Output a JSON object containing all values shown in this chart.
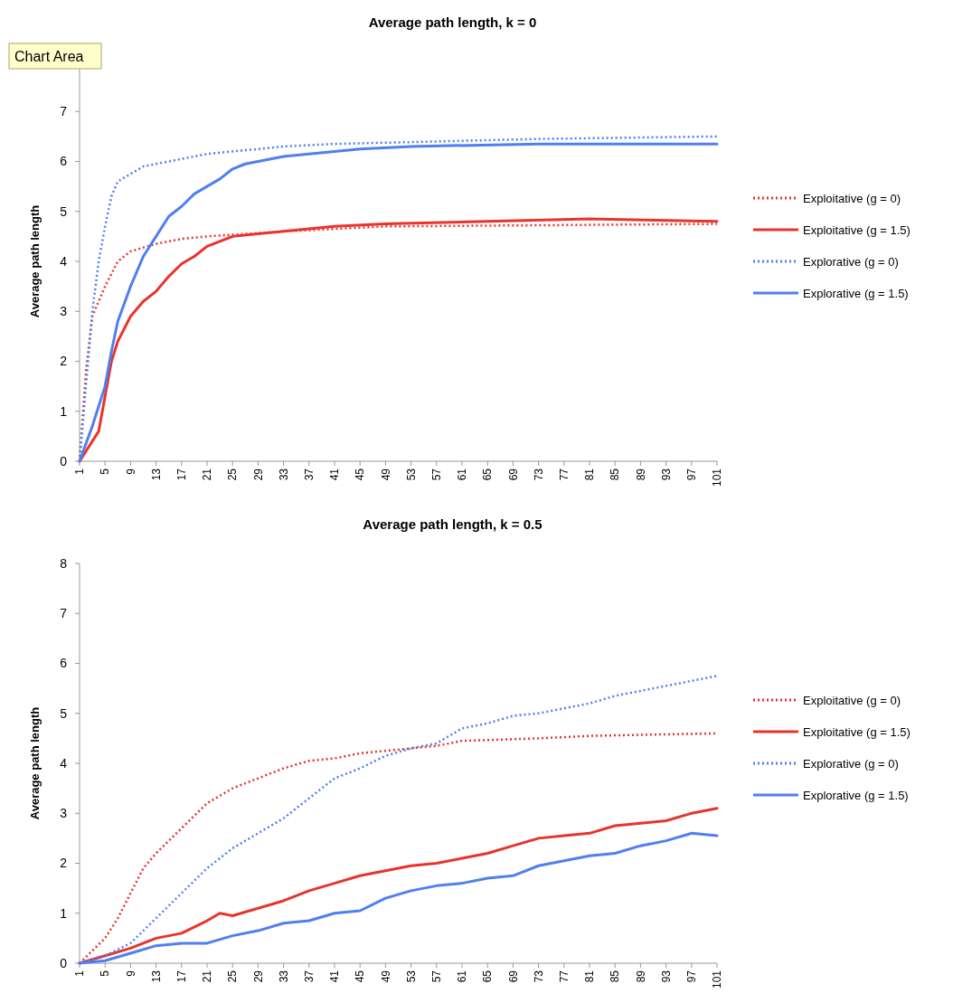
{
  "chart_data": [
    {
      "type": "line",
      "title": "Average path length, k = 0",
      "ylabel": "Average path length",
      "annotations": [
        "Chart Area"
      ],
      "xlim": [
        1,
        101
      ],
      "xticks": [
        1,
        5,
        9,
        13,
        17,
        21,
        25,
        29,
        33,
        37,
        41,
        45,
        49,
        53,
        57,
        61,
        65,
        69,
        73,
        77,
        81,
        85,
        89,
        93,
        97,
        101
      ],
      "ylim": [
        0,
        8
      ],
      "yticks": [
        0,
        1,
        2,
        3,
        4,
        5,
        6,
        7
      ],
      "grid": false,
      "legend": "right",
      "marker": "none",
      "series": [
        {
          "name": "Exploitative (g = 0)",
          "color": "#e8342c",
          "line_style": "dotted",
          "x": [
            1,
            2,
            3,
            5,
            7,
            9,
            13,
            17,
            21,
            33,
            49,
            101
          ],
          "values": [
            0,
            1.8,
            2.9,
            3.5,
            4.0,
            4.2,
            4.35,
            4.45,
            4.5,
            4.6,
            4.7,
            4.75
          ]
        },
        {
          "name": "Exploitative (g = 1.5)",
          "color": "#e8342c",
          "line_style": "solid",
          "x": [
            1,
            3,
            4,
            5,
            6,
            7,
            9,
            11,
            13,
            15,
            17,
            19,
            21,
            25,
            29,
            33,
            37,
            41,
            49,
            65,
            81,
            101
          ],
          "values": [
            0,
            0.4,
            0.6,
            1.3,
            2.0,
            2.4,
            2.9,
            3.2,
            3.4,
            3.7,
            3.95,
            4.1,
            4.3,
            4.5,
            4.55,
            4.6,
            4.65,
            4.7,
            4.75,
            4.8,
            4.85,
            4.8
          ]
        },
        {
          "name": "Explorative (g = 0)",
          "color": "#4f7ff0",
          "line_style": "dotted",
          "x": [
            1,
            2,
            3,
            4,
            5,
            6,
            7,
            9,
            11,
            13,
            17,
            21,
            25,
            33,
            41,
            57,
            73,
            101
          ],
          "values": [
            0,
            1.5,
            3.0,
            4.0,
            4.7,
            5.3,
            5.6,
            5.75,
            5.9,
            5.95,
            6.05,
            6.15,
            6.2,
            6.3,
            6.35,
            6.4,
            6.45,
            6.5
          ]
        },
        {
          "name": "Explorative (g = 1.5)",
          "color": "#4f7ff0",
          "line_style": "solid",
          "x": [
            1,
            3,
            5,
            6,
            7,
            9,
            11,
            13,
            15,
            17,
            19,
            21,
            23,
            25,
            27,
            29,
            33,
            37,
            45,
            53,
            73,
            101
          ],
          "values": [
            0,
            0.7,
            1.5,
            2.2,
            2.8,
            3.5,
            4.1,
            4.5,
            4.9,
            5.1,
            5.35,
            5.5,
            5.65,
            5.85,
            5.95,
            6.0,
            6.1,
            6.15,
            6.25,
            6.3,
            6.35,
            6.35
          ]
        }
      ]
    },
    {
      "type": "line",
      "title": "Average path length, k = 0.5",
      "ylabel": "Average path length",
      "xlim": [
        1,
        101
      ],
      "xticks": [
        1,
        5,
        9,
        13,
        17,
        21,
        25,
        29,
        33,
        37,
        41,
        45,
        49,
        53,
        57,
        61,
        65,
        69,
        73,
        77,
        81,
        85,
        89,
        93,
        97,
        101
      ],
      "ylim": [
        0,
        8
      ],
      "yticks": [
        0,
        1,
        2,
        3,
        4,
        5,
        6,
        7,
        8
      ],
      "grid": false,
      "legend": "right",
      "marker": "none",
      "series": [
        {
          "name": "Exploitative (g = 0)",
          "color": "#e8342c",
          "line_style": "dotted",
          "x": [
            1,
            5,
            7,
            9,
            11,
            13,
            17,
            21,
            25,
            29,
            33,
            37,
            41,
            45,
            49,
            57,
            61,
            73,
            81,
            101
          ],
          "values": [
            0,
            0.5,
            0.9,
            1.4,
            1.9,
            2.2,
            2.7,
            3.2,
            3.5,
            3.7,
            3.9,
            4.05,
            4.1,
            4.2,
            4.25,
            4.35,
            4.45,
            4.5,
            4.55,
            4.6
          ]
        },
        {
          "name": "Exploitative (g = 1.5)",
          "color": "#e8342c",
          "line_style": "solid",
          "x": [
            1,
            5,
            9,
            13,
            17,
            21,
            23,
            25,
            29,
            33,
            37,
            41,
            45,
            49,
            53,
            57,
            61,
            65,
            69,
            73,
            77,
            81,
            85,
            89,
            93,
            97,
            101
          ],
          "values": [
            0,
            0.15,
            0.3,
            0.5,
            0.6,
            0.85,
            1.0,
            0.95,
            1.1,
            1.25,
            1.45,
            1.6,
            1.75,
            1.85,
            1.95,
            2.0,
            2.1,
            2.2,
            2.35,
            2.5,
            2.55,
            2.6,
            2.75,
            2.8,
            2.85,
            3.0,
            3.1
          ]
        },
        {
          "name": "Explorative (g = 0)",
          "color": "#4f7ff0",
          "line_style": "dotted",
          "x": [
            1,
            5,
            9,
            13,
            17,
            21,
            25,
            29,
            33,
            37,
            41,
            45,
            49,
            53,
            57,
            61,
            65,
            69,
            73,
            77,
            81,
            85,
            89,
            93,
            97,
            101
          ],
          "values": [
            0,
            0.15,
            0.4,
            0.9,
            1.4,
            1.9,
            2.3,
            2.6,
            2.9,
            3.3,
            3.7,
            3.9,
            4.15,
            4.3,
            4.4,
            4.7,
            4.8,
            4.95,
            5.0,
            5.1,
            5.2,
            5.35,
            5.45,
            5.55,
            5.65,
            5.75
          ]
        },
        {
          "name": "Explorative (g = 1.5)",
          "color": "#4f7ff0",
          "line_style": "solid",
          "x": [
            1,
            5,
            9,
            13,
            17,
            21,
            25,
            29,
            33,
            37,
            41,
            45,
            49,
            53,
            57,
            61,
            65,
            69,
            73,
            77,
            81,
            85,
            89,
            93,
            97,
            101
          ],
          "values": [
            0,
            0.05,
            0.2,
            0.35,
            0.4,
            0.4,
            0.55,
            0.65,
            0.8,
            0.85,
            1.0,
            1.05,
            1.3,
            1.45,
            1.55,
            1.6,
            1.7,
            1.75,
            1.95,
            2.05,
            2.15,
            2.2,
            2.35,
            2.45,
            2.6,
            2.55
          ]
        }
      ]
    }
  ]
}
